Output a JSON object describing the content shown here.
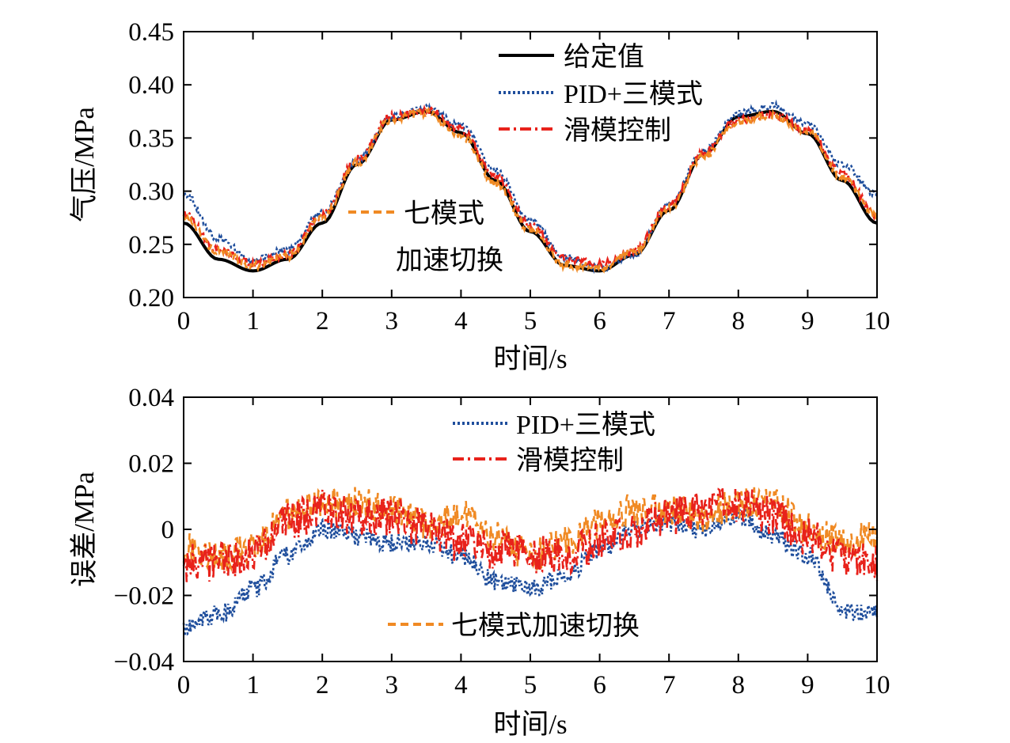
{
  "colors": {
    "setpoint": "#000000",
    "pid": "#1f4e9c",
    "smc": "#e8221b",
    "seven": "#f08a24"
  },
  "chart_data": [
    {
      "type": "line",
      "xlabel": "时间/s",
      "ylabel": "气压/MPa",
      "xlim": [
        0,
        10
      ],
      "ylim": [
        0.2,
        0.45
      ],
      "xticks": [
        "0",
        "1",
        "2",
        "3",
        "4",
        "5",
        "6",
        "7",
        "8",
        "9",
        "10"
      ],
      "yticks": [
        "0.20",
        "0.25",
        "0.30",
        "0.35",
        "0.40",
        "0.45"
      ],
      "legend_position": "top-right",
      "x": [
        0,
        0.5,
        1,
        1.5,
        2,
        2.5,
        3,
        3.5,
        4,
        4.5,
        5,
        5.5,
        6,
        6.5,
        7,
        7.5,
        8,
        8.5,
        9,
        9.5,
        10
      ],
      "series": [
        {
          "name": "给定值",
          "color_key": "setpoint",
          "style": "solid",
          "noise": 0,
          "values": [
            0.27,
            0.236,
            0.225,
            0.236,
            0.27,
            0.325,
            0.367,
            0.375,
            0.355,
            0.31,
            0.262,
            0.23,
            0.225,
            0.24,
            0.282,
            0.335,
            0.37,
            0.375,
            0.354,
            0.31,
            0.27
          ]
        },
        {
          "name": "PID+三模式",
          "color_key": "pid",
          "style": "dotted",
          "noise": 0.003,
          "values": [
            0.298,
            0.255,
            0.235,
            0.245,
            0.28,
            0.328,
            0.37,
            0.378,
            0.362,
            0.32,
            0.272,
            0.238,
            0.228,
            0.24,
            0.288,
            0.338,
            0.374,
            0.38,
            0.363,
            0.325,
            0.297
          ]
        },
        {
          "name": "滑模控制",
          "color_key": "smc",
          "style": "dashdot",
          "noise": 0.004,
          "values": [
            0.278,
            0.245,
            0.232,
            0.24,
            0.277,
            0.33,
            0.37,
            0.377,
            0.358,
            0.314,
            0.268,
            0.236,
            0.231,
            0.244,
            0.287,
            0.336,
            0.368,
            0.372,
            0.357,
            0.316,
            0.278
          ]
        },
        {
          "name": "七模式\n加速切换",
          "color_key": "seven",
          "style": "dashed",
          "noise": 0.004,
          "values": [
            0.276,
            0.243,
            0.23,
            0.238,
            0.275,
            0.327,
            0.368,
            0.374,
            0.352,
            0.308,
            0.263,
            0.231,
            0.228,
            0.242,
            0.284,
            0.333,
            0.366,
            0.371,
            0.356,
            0.314,
            0.276
          ]
        }
      ],
      "legend": [
        "给定值",
        "PID+三模式",
        "滑模控制"
      ],
      "annotation": [
        "七模式",
        "加速切换"
      ]
    },
    {
      "type": "line",
      "xlabel": "时间/s",
      "ylabel": "误差/MPa",
      "xlim": [
        0,
        10
      ],
      "ylim": [
        -0.04,
        0.04
      ],
      "xticks": [
        "0",
        "1",
        "2",
        "3",
        "4",
        "5",
        "6",
        "7",
        "8",
        "9",
        "10"
      ],
      "yticks": [
        "-0.04",
        "-0.02",
        "0",
        "0.02",
        "0.04"
      ],
      "legend_position": "top-center",
      "x": [
        0,
        0.5,
        1,
        1.5,
        2,
        2.5,
        3,
        3.5,
        4,
        4.5,
        5,
        5.5,
        6,
        6.5,
        7,
        7.5,
        8,
        8.5,
        9,
        9.5,
        10
      ],
      "series": [
        {
          "name": "PID+三模式",
          "color_key": "pid",
          "style": "dotted",
          "noise": 0.003,
          "values": [
            -0.03,
            -0.026,
            -0.018,
            -0.008,
            0.0,
            -0.002,
            -0.004,
            -0.004,
            -0.008,
            -0.016,
            -0.018,
            -0.014,
            -0.006,
            0.0,
            0.002,
            0.0,
            0.004,
            -0.002,
            -0.008,
            -0.024,
            -0.026
          ]
        },
        {
          "name": "七模式加速切换",
          "color_key": "seven",
          "style": "dashed",
          "noise": 0.005,
          "values": [
            -0.006,
            -0.008,
            -0.006,
            0.004,
            0.008,
            0.008,
            0.006,
            0.002,
            0.004,
            -0.002,
            -0.008,
            -0.004,
            0.002,
            0.006,
            0.006,
            0.004,
            0.008,
            0.008,
            0.0,
            -0.004,
            -0.002
          ]
        },
        {
          "name": "滑模控制",
          "color_key": "smc",
          "style": "dashdot",
          "noise": 0.006,
          "values": [
            -0.01,
            -0.01,
            -0.008,
            0.002,
            0.006,
            0.004,
            0.004,
            0.0,
            -0.004,
            -0.006,
            -0.008,
            -0.008,
            -0.004,
            0.0,
            0.004,
            0.006,
            0.008,
            0.004,
            -0.002,
            -0.008,
            -0.01
          ]
        }
      ],
      "legend": [
        "PID+三模式",
        "滑模控制"
      ],
      "annotation": [
        "七模式加速切换"
      ]
    }
  ]
}
